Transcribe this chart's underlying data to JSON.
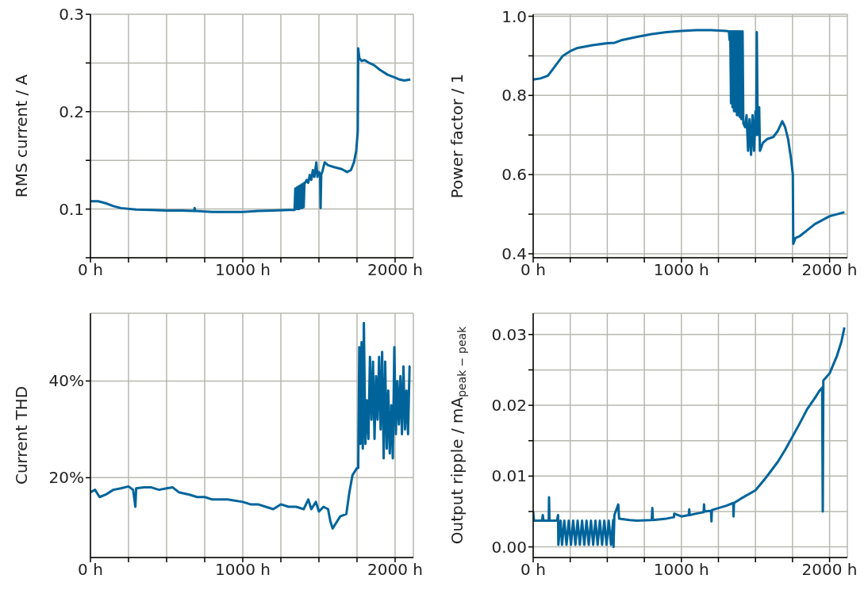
{
  "chart_data": [
    {
      "type": "line",
      "ylabel": "RMS current / A",
      "color": "#00649b",
      "grid": true,
      "x": [
        0,
        50,
        100,
        150,
        200,
        300,
        400,
        500,
        600,
        680,
        684,
        690,
        800,
        900,
        1000,
        1100,
        1200,
        1300,
        1340,
        1345,
        1350,
        1355,
        1360,
        1365,
        1370,
        1375,
        1380,
        1385,
        1390,
        1395,
        1400,
        1405,
        1410,
        1420,
        1430,
        1440,
        1450,
        1460,
        1470,
        1483,
        1490,
        1500,
        1508,
        1511,
        1515,
        1525,
        1538,
        1560,
        1600,
        1650,
        1685,
        1710,
        1730,
        1745,
        1755,
        1758,
        1765,
        1780,
        1800,
        1830,
        1860,
        1900,
        1950,
        2000,
        2030,
        2060,
        2100
      ],
      "values": [
        0.108,
        0.108,
        0.106,
        0.103,
        0.101,
        0.0995,
        0.099,
        0.0985,
        0.0985,
        0.098,
        0.101,
        0.098,
        0.097,
        0.097,
        0.097,
        0.098,
        0.0985,
        0.099,
        0.099,
        0.121,
        0.1,
        0.122,
        0.1,
        0.123,
        0.1,
        0.124,
        0.101,
        0.125,
        0.101,
        0.126,
        0.102,
        0.127,
        0.127,
        0.13,
        0.127,
        0.135,
        0.13,
        0.14,
        0.133,
        0.148,
        0.133,
        0.138,
        0.135,
        0.101,
        0.135,
        0.14,
        0.148,
        0.145,
        0.143,
        0.141,
        0.138,
        0.14,
        0.148,
        0.16,
        0.18,
        0.265,
        0.255,
        0.252,
        0.253,
        0.25,
        0.248,
        0.243,
        0.238,
        0.235,
        0.233,
        0.232,
        0.233
      ],
      "xlim": [
        0,
        2120
      ],
      "xticks": [
        {
          "value": 0,
          "label": "0 h"
        },
        {
          "value": 250,
          "label": null
        },
        {
          "value": 500,
          "label": null
        },
        {
          "value": 750,
          "label": null
        },
        {
          "value": 1000,
          "label": "1000 h"
        },
        {
          "value": 1250,
          "label": null
        },
        {
          "value": 1500,
          "label": null
        },
        {
          "value": 1750,
          "label": null
        },
        {
          "value": 2000,
          "label": "2000 h"
        }
      ],
      "ylim": [
        0.05,
        0.3
      ],
      "yticks": [
        {
          "value": 0.05,
          "label": null
        },
        0.1,
        {
          "value": 0.15,
          "label": null
        },
        0.2,
        {
          "value": 0.25,
          "label": null
        },
        0.3
      ]
    },
    {
      "type": "line",
      "ylabel": "Power factor / 1",
      "color": "#00649b",
      "grid": true,
      "x": [
        0,
        50,
        100,
        150,
        200,
        250,
        300,
        400,
        500,
        550,
        600,
        700,
        800,
        900,
        1000,
        1100,
        1200,
        1300,
        1321,
        1325,
        1330,
        1335,
        1340,
        1345,
        1350,
        1355,
        1360,
        1365,
        1370,
        1375,
        1380,
        1385,
        1390,
        1395,
        1400,
        1405,
        1413,
        1418,
        1430,
        1440,
        1450,
        1460,
        1470,
        1480,
        1490,
        1500,
        1505,
        1509,
        1515,
        1525,
        1530,
        1550,
        1580,
        1620,
        1650,
        1681,
        1700,
        1720,
        1740,
        1752,
        1755,
        1770,
        1800,
        1850,
        1900,
        1950,
        2000,
        2050,
        2100
      ],
      "values": [
        0.84,
        0.843,
        0.85,
        0.875,
        0.9,
        0.912,
        0.92,
        0.927,
        0.932,
        0.933,
        0.94,
        0.948,
        0.955,
        0.96,
        0.963,
        0.965,
        0.965,
        0.963,
        0.962,
        0.94,
        0.962,
        0.78,
        0.962,
        0.77,
        0.962,
        0.76,
        0.962,
        0.76,
        0.962,
        0.75,
        0.962,
        0.75,
        0.962,
        0.745,
        0.962,
        0.74,
        0.962,
        0.73,
        0.72,
        0.75,
        0.66,
        0.74,
        0.65,
        0.75,
        0.66,
        0.76,
        0.7,
        0.96,
        0.7,
        0.77,
        0.66,
        0.68,
        0.69,
        0.695,
        0.71,
        0.735,
        0.72,
        0.69,
        0.64,
        0.6,
        0.425,
        0.44,
        0.445,
        0.46,
        0.475,
        0.485,
        0.495,
        0.5,
        0.505
      ],
      "xlim": [
        0,
        2120
      ],
      "xticks": [
        {
          "value": 0,
          "label": "0 h"
        },
        {
          "value": 250,
          "label": null
        },
        {
          "value": 500,
          "label": null
        },
        {
          "value": 750,
          "label": null
        },
        {
          "value": 1000,
          "label": "1000 h"
        },
        {
          "value": 1250,
          "label": null
        },
        {
          "value": 1500,
          "label": null
        },
        {
          "value": 1750,
          "label": null
        },
        {
          "value": 2000,
          "label": "2000 h"
        }
      ],
      "ylim": [
        0.39,
        1.005
      ],
      "yticks": [
        0.4,
        {
          "value": 0.5,
          "label": null
        },
        0.6,
        {
          "value": 0.7,
          "label": null
        },
        0.8,
        {
          "value": 0.9,
          "label": null
        },
        {
          "value": 1.0,
          "label": "1.0"
        }
      ]
    },
    {
      "type": "line",
      "ylabel": "Current THD",
      "color": "#00649b",
      "grid": true,
      "x": [
        0,
        30,
        60,
        100,
        150,
        200,
        250,
        280,
        295,
        300,
        350,
        400,
        450,
        500,
        540,
        580,
        650,
        700,
        750,
        800,
        900,
        1000,
        1050,
        1100,
        1150,
        1200,
        1250,
        1300,
        1350,
        1400,
        1430,
        1450,
        1480,
        1500,
        1530,
        1560,
        1575,
        1590,
        1610,
        1640,
        1680,
        1700,
        1720,
        1750,
        1758,
        1765,
        1772,
        1780,
        1788,
        1795,
        1805,
        1815,
        1825,
        1835,
        1845,
        1855,
        1865,
        1875,
        1885,
        1895,
        1905,
        1915,
        1925,
        1935,
        1945,
        1955,
        1965,
        1975,
        1985,
        1995,
        2005,
        2015,
        2025,
        2035,
        2045,
        2055,
        2065,
        2075,
        2085,
        2095,
        2100
      ],
      "values": [
        17,
        17.5,
        16,
        16.5,
        17.5,
        17.8,
        18.2,
        17.5,
        14,
        17.8,
        18,
        18,
        17.5,
        17.8,
        18,
        17,
        16.5,
        16,
        16,
        15.5,
        15.5,
        15,
        14.5,
        14.5,
        14,
        13.5,
        14.5,
        14,
        14,
        13.5,
        15.5,
        13.5,
        15,
        13,
        14,
        13.5,
        11,
        9.5,
        10.5,
        12,
        12.5,
        17,
        20.5,
        22,
        22,
        47,
        27,
        48,
        26,
        52,
        27,
        36,
        28,
        45,
        32,
        44,
        28,
        41,
        32,
        45,
        30,
        46,
        24,
        44,
        26,
        38,
        25,
        35,
        24,
        47,
        29,
        40,
        31,
        41,
        29,
        43,
        30,
        38,
        29,
        43,
        43
      ],
      "xlim": [
        0,
        2120
      ],
      "xticks": [
        {
          "value": 0,
          "label": "0 h"
        },
        {
          "value": 250,
          "label": null
        },
        {
          "value": 500,
          "label": null
        },
        {
          "value": 750,
          "label": null
        },
        {
          "value": 1000,
          "label": "1000 h"
        },
        {
          "value": 1250,
          "label": null
        },
        {
          "value": 1500,
          "label": null
        },
        {
          "value": 1750,
          "label": null
        },
        {
          "value": 2000,
          "label": "2000 h"
        }
      ],
      "ylim": [
        3.5,
        54
      ],
      "yticks": [
        {
          "value": 20,
          "label": "20%"
        },
        {
          "value": 40,
          "label": "40%"
        }
      ]
    },
    {
      "type": "line",
      "ylabel": "Output ripple / mA$_{peak − peak}$",
      "color": "#00649b",
      "grid": true,
      "x": [
        0,
        5,
        60,
        65,
        70,
        105,
        107,
        110,
        160,
        168,
        170,
        185,
        195,
        210,
        225,
        240,
        255,
        270,
        285,
        300,
        315,
        330,
        345,
        360,
        375,
        390,
        405,
        420,
        435,
        450,
        465,
        480,
        495,
        510,
        525,
        540,
        542,
        548,
        574,
        580,
        650,
        700,
        800,
        804,
        808,
        900,
        950,
        952,
        1000,
        1050,
        1053,
        1056,
        1100,
        1150,
        1153,
        1156,
        1200,
        1203,
        1206,
        1300,
        1350,
        1352,
        1355,
        1400,
        1500,
        1560,
        1600,
        1650,
        1700,
        1745,
        1800,
        1850,
        1900,
        1930,
        1950,
        1954,
        1958,
        2000,
        2050,
        2080,
        2100
      ],
      "values": [
        0.005,
        0.0037,
        0.0037,
        0.0045,
        0.0037,
        0.0037,
        0.007,
        0.0037,
        0.0037,
        0.0045,
        0.0003,
        0.0037,
        0.0003,
        0.0037,
        0.0003,
        0.0037,
        0.0003,
        0.0037,
        0.0003,
        0.0037,
        0.0003,
        0.0037,
        0.0003,
        0.0037,
        0.0003,
        0.0037,
        0.0003,
        0.0037,
        0.0003,
        0.0037,
        0.0003,
        0.0037,
        0.0003,
        0.0037,
        0.0003,
        0.0038,
        0.0,
        0.0045,
        0.006,
        0.004,
        0.0038,
        0.0037,
        0.0038,
        0.0055,
        0.0038,
        0.004,
        0.0042,
        0.0047,
        0.0043,
        0.0045,
        0.0053,
        0.0045,
        0.0047,
        0.0049,
        0.006,
        0.005,
        0.0051,
        0.0036,
        0.0052,
        0.0058,
        0.0062,
        0.0043,
        0.0062,
        0.0068,
        0.008,
        0.0095,
        0.0106,
        0.012,
        0.0137,
        0.0154,
        0.0175,
        0.0195,
        0.021,
        0.022,
        0.0225,
        0.005,
        0.0235,
        0.0245,
        0.027,
        0.029,
        0.031
      ],
      "xlim": [
        0,
        2120
      ],
      "xticks": [
        {
          "value": 0,
          "label": "0 h"
        },
        {
          "value": 250,
          "label": null
        },
        {
          "value": 500,
          "label": null
        },
        {
          "value": 750,
          "label": null
        },
        {
          "value": 1000,
          "label": "1000 h"
        },
        {
          "value": 1250,
          "label": null
        },
        {
          "value": 1500,
          "label": null
        },
        {
          "value": 1750,
          "label": null
        },
        {
          "value": 2000,
          "label": "2000 h"
        }
      ],
      "ylim": [
        -0.0015,
        0.033
      ],
      "yticks": [
        {
          "value": 0,
          "label": "0.00"
        },
        {
          "value": 0.005,
          "label": null
        },
        {
          "value": 0.01,
          "label": "0.01"
        },
        {
          "value": 0.015,
          "label": null
        },
        {
          "value": 0.02,
          "label": "0.02"
        },
        {
          "value": 0.025,
          "label": null
        },
        {
          "value": 0.03,
          "label": "0.03"
        }
      ]
    }
  ]
}
